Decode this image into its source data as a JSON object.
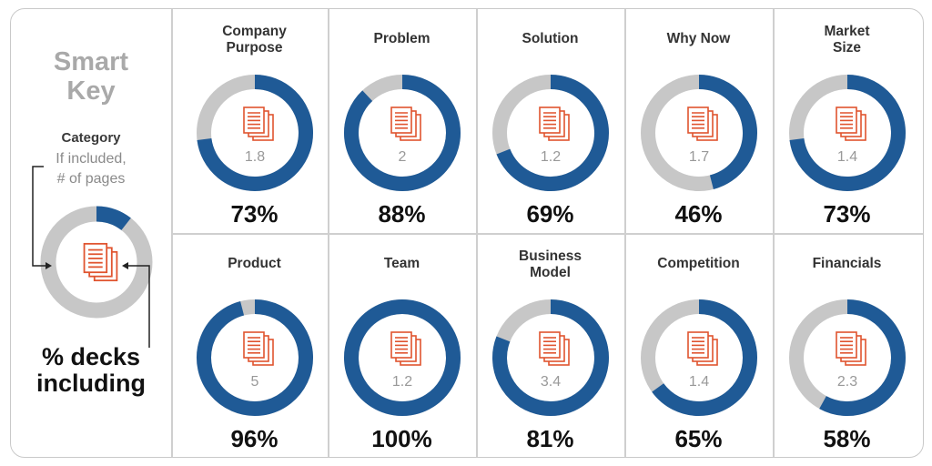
{
  "key": {
    "title_line1": "Smart",
    "title_line2": "Key",
    "category": "Category",
    "sub_line1": "If included,",
    "sub_line2": "# of pages",
    "pct_line1": "% decks",
    "pct_line2": "including"
  },
  "colors": {
    "ring_blue": "#1f5a96",
    "ring_gray": "#c7c7c7",
    "doc_orange": "#e0542f",
    "border": "#cfcfcf"
  },
  "chart_data": {
    "type": "donut-grid",
    "categories": [
      {
        "title_lines": [
          "Company",
          "Purpose"
        ],
        "percent": 73,
        "pages": "1.8",
        "pct_label": "73%"
      },
      {
        "title_lines": [
          "Problem"
        ],
        "percent": 88,
        "pages": "2",
        "pct_label": "88%"
      },
      {
        "title_lines": [
          "Solution"
        ],
        "percent": 69,
        "pages": "1.2",
        "pct_label": "69%"
      },
      {
        "title_lines": [
          "Why Now"
        ],
        "percent": 46,
        "pages": "1.7",
        "pct_label": "46%"
      },
      {
        "title_lines": [
          "Market",
          "Size"
        ],
        "percent": 73,
        "pages": "1.4",
        "pct_label": "73%"
      },
      {
        "title_lines": [
          "Product"
        ],
        "percent": 96,
        "pages": "5",
        "pct_label": "96%"
      },
      {
        "title_lines": [
          "Team"
        ],
        "percent": 100,
        "pages": "1.2",
        "pct_label": "100%"
      },
      {
        "title_lines": [
          "Business",
          "Model"
        ],
        "percent": 81,
        "pages": "3.4",
        "pct_label": "81%"
      },
      {
        "title_lines": [
          "Competition"
        ],
        "percent": 65,
        "pages": "1.4",
        "pct_label": "65%"
      },
      {
        "title_lines": [
          "Financials"
        ],
        "percent": 58,
        "pages": "2.3",
        "pct_label": "58%"
      }
    ]
  }
}
